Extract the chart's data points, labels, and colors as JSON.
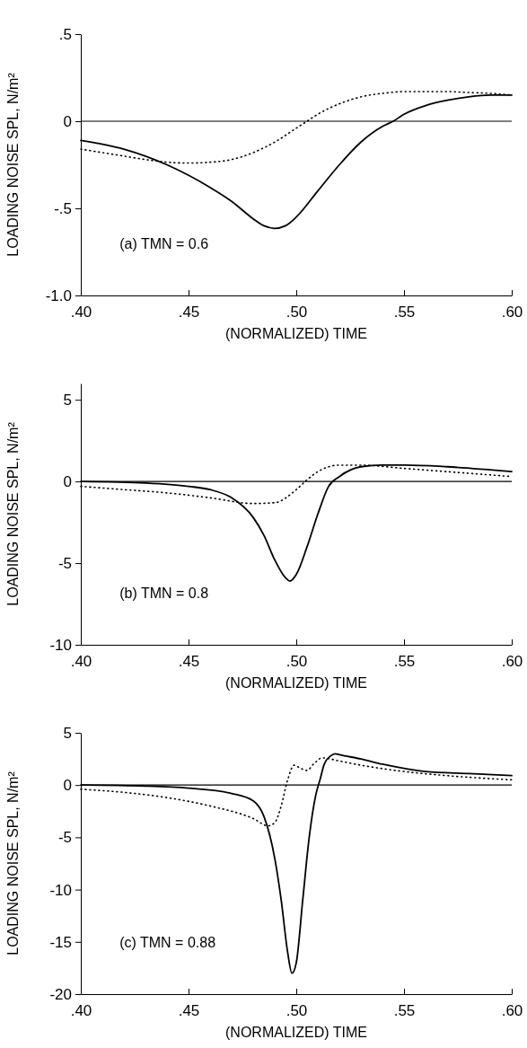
{
  "chart_data": [
    {
      "type": "line",
      "xlabel": "(NORMALIZED) TIME",
      "ylabel": "LOADING NOISE SPL, N/m²",
      "annotations": [
        "(a)  TMN = 0.6"
      ],
      "xlim": [
        0.4,
        0.6
      ],
      "xticks": [
        {
          "value": 0.4,
          "label": ".40"
        },
        {
          "value": 0.45,
          "label": ".45"
        },
        {
          "value": 0.5,
          "label": ".50"
        },
        {
          "value": 0.55,
          "label": ".55"
        },
        {
          "value": 0.6,
          "label": ".60"
        }
      ],
      "ylim": [
        -1.0,
        0.5
      ],
      "yticks": [
        {
          "value": 0.5,
          "label": ".5"
        },
        0,
        {
          "value": -0.5,
          "label": "-.5"
        },
        {
          "value": -1.0,
          "label": "-1.0"
        }
      ],
      "grid": false,
      "ref_lines": [
        {
          "axis": "y",
          "value": 0,
          "color": "#000000"
        }
      ],
      "series": [
        {
          "color": "#000000",
          "line_style": "solid",
          "x": [
            0.4,
            0.42,
            0.44,
            0.46,
            0.47,
            0.48,
            0.485,
            0.49,
            0.495,
            0.5,
            0.51,
            0.52,
            0.53,
            0.54,
            0.545,
            0.55,
            0.56,
            0.57,
            0.58,
            0.59,
            0.6
          ],
          "values": [
            -0.11,
            -0.16,
            -0.25,
            -0.38,
            -0.46,
            -0.56,
            -0.6,
            -0.615,
            -0.6,
            -0.55,
            -0.4,
            -0.25,
            -0.12,
            -0.03,
            0.0,
            0.04,
            0.09,
            0.12,
            0.14,
            0.15,
            0.15
          ]
        },
        {
          "color": "#000000",
          "line_style": "dotted",
          "x": [
            0.4,
            0.42,
            0.43,
            0.44,
            0.45,
            0.46,
            0.47,
            0.48,
            0.49,
            0.5,
            0.505,
            0.51,
            0.52,
            0.53,
            0.54,
            0.55,
            0.56,
            0.57,
            0.58,
            0.59,
            0.6
          ],
          "values": [
            -0.16,
            -0.2,
            -0.22,
            -0.235,
            -0.24,
            -0.235,
            -0.22,
            -0.18,
            -0.12,
            -0.04,
            0.0,
            0.04,
            0.1,
            0.14,
            0.16,
            0.17,
            0.17,
            0.17,
            0.165,
            0.16,
            0.15
          ]
        }
      ]
    },
    {
      "type": "line",
      "xlabel": "(NORMALIZED) TIME",
      "ylabel": "LOADING NOISE SPL, N/m²",
      "annotations": [
        "(b)  TMN = 0.8"
      ],
      "xlim": [
        0.4,
        0.6
      ],
      "xticks": [
        {
          "value": 0.4,
          "label": ".40"
        },
        {
          "value": 0.45,
          "label": ".45"
        },
        {
          "value": 0.5,
          "label": ".50"
        },
        {
          "value": 0.55,
          "label": ".55"
        },
        {
          "value": 0.6,
          "label": ".60"
        }
      ],
      "ylim": [
        -10,
        6
      ],
      "yticks": [
        5,
        0,
        -5,
        -10
      ],
      "grid": false,
      "ref_lines": [
        {
          "axis": "y",
          "value": 0,
          "color": "#000000"
        }
      ],
      "series": [
        {
          "color": "#000000",
          "line_style": "solid",
          "x": [
            0.4,
            0.43,
            0.45,
            0.46,
            0.47,
            0.48,
            0.485,
            0.49,
            0.495,
            0.497,
            0.5,
            0.505,
            0.51,
            0.515,
            0.52,
            0.53,
            0.54,
            0.55,
            0.57,
            0.6
          ],
          "values": [
            0.0,
            -0.1,
            -0.3,
            -0.5,
            -1.0,
            -2.2,
            -3.3,
            -4.8,
            -5.9,
            -6.1,
            -5.7,
            -4.0,
            -2.0,
            -0.3,
            0.3,
            0.9,
            1.0,
            1.0,
            0.9,
            0.6
          ]
        },
        {
          "color": "#000000",
          "line_style": "dotted",
          "x": [
            0.4,
            0.42,
            0.44,
            0.46,
            0.48,
            0.49,
            0.5,
            0.505,
            0.51,
            0.52,
            0.53,
            0.55,
            0.57,
            0.6
          ],
          "values": [
            -0.3,
            -0.5,
            -0.7,
            -1.0,
            -1.35,
            -1.3,
            -0.5,
            0.1,
            0.6,
            1.0,
            1.0,
            0.8,
            0.6,
            0.3
          ]
        }
      ]
    },
    {
      "type": "line",
      "xlabel": "(NORMALIZED) TIME",
      "ylabel": "LOADING NOISE SPL, N/m²",
      "annotations": [
        "(c)  TMN = 0.88"
      ],
      "xlim": [
        0.4,
        0.6
      ],
      "xticks": [
        {
          "value": 0.4,
          "label": ".40"
        },
        {
          "value": 0.45,
          "label": ".45"
        },
        {
          "value": 0.5,
          "label": ".50"
        },
        {
          "value": 0.55,
          "label": ".55"
        },
        {
          "value": 0.6,
          "label": ".60"
        }
      ],
      "ylim": [
        -20,
        5
      ],
      "yticks": [
        5,
        0,
        -5,
        -10,
        -15,
        -20
      ],
      "grid": false,
      "ref_lines": [
        {
          "axis": "y",
          "value": 0,
          "color": "#000000"
        }
      ],
      "series": [
        {
          "color": "#000000",
          "line_style": "solid",
          "x": [
            0.4,
            0.43,
            0.45,
            0.47,
            0.48,
            0.485,
            0.49,
            0.493,
            0.496,
            0.498,
            0.5,
            0.503,
            0.506,
            0.509,
            0.511,
            0.513,
            0.516,
            0.518,
            0.52,
            0.53,
            0.54,
            0.55,
            0.56,
            0.58,
            0.6
          ],
          "values": [
            0,
            -0.1,
            -0.3,
            -0.8,
            -1.5,
            -3,
            -7,
            -11,
            -16,
            -18,
            -17,
            -11,
            -5,
            -1,
            0.5,
            2,
            2.8,
            3.0,
            2.9,
            2.5,
            2.0,
            1.6,
            1.3,
            1.1,
            0.9
          ]
        },
        {
          "color": "#000000",
          "line_style": "dotted",
          "x": [
            0.4,
            0.42,
            0.44,
            0.46,
            0.48,
            0.487,
            0.49,
            0.493,
            0.496,
            0.499,
            0.502,
            0.505,
            0.508,
            0.512,
            0.52,
            0.53,
            0.55,
            0.57,
            0.6
          ],
          "values": [
            -0.4,
            -0.7,
            -1.2,
            -2.0,
            -3.2,
            -3.9,
            -3.6,
            -2.0,
            0.5,
            1.9,
            1.6,
            1.4,
            2.0,
            2.6,
            2.3,
            1.9,
            1.3,
            0.9,
            0.5
          ]
        }
      ]
    }
  ]
}
